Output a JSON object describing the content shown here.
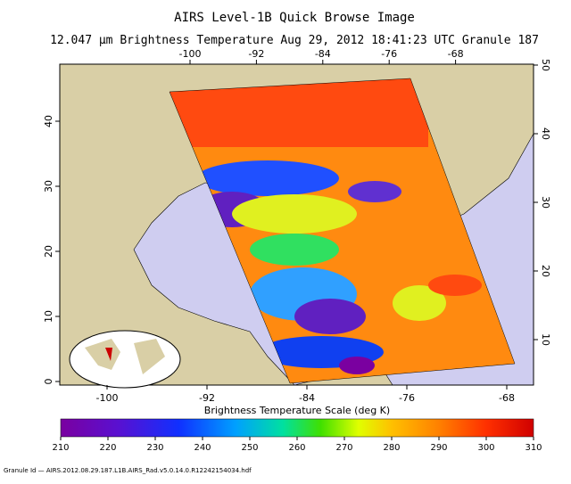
{
  "header": {
    "title": "AIRS Level-1B Quick Browse Image",
    "subtitle": "12.047 μm Brightness Temperature   Aug 29, 2012 18:41:23 UTC   Granule 187"
  },
  "map": {
    "top_lon_ticks": [
      -100,
      -92,
      -84,
      -76,
      -68
    ],
    "bottom_lon_ticks": [
      -100,
      -92,
      -84,
      -76,
      -68
    ],
    "left_lat_ticks": [
      0,
      10,
      20,
      30,
      40
    ],
    "right_lat_ticks": [
      10,
      20,
      30,
      40,
      50
    ]
  },
  "colorbar": {
    "label": "Brightness Temperature Scale (deg K)",
    "lim": [
      210,
      310
    ],
    "ticks": [
      210,
      220,
      230,
      240,
      250,
      260,
      270,
      280,
      290,
      300,
      310
    ]
  },
  "footer": {
    "granule_id": "Granule Id — AIRS.2012.08.29.187.L1B.AIRS_Rad.v5.0.14.0.R12242154034.hdf"
  }
}
